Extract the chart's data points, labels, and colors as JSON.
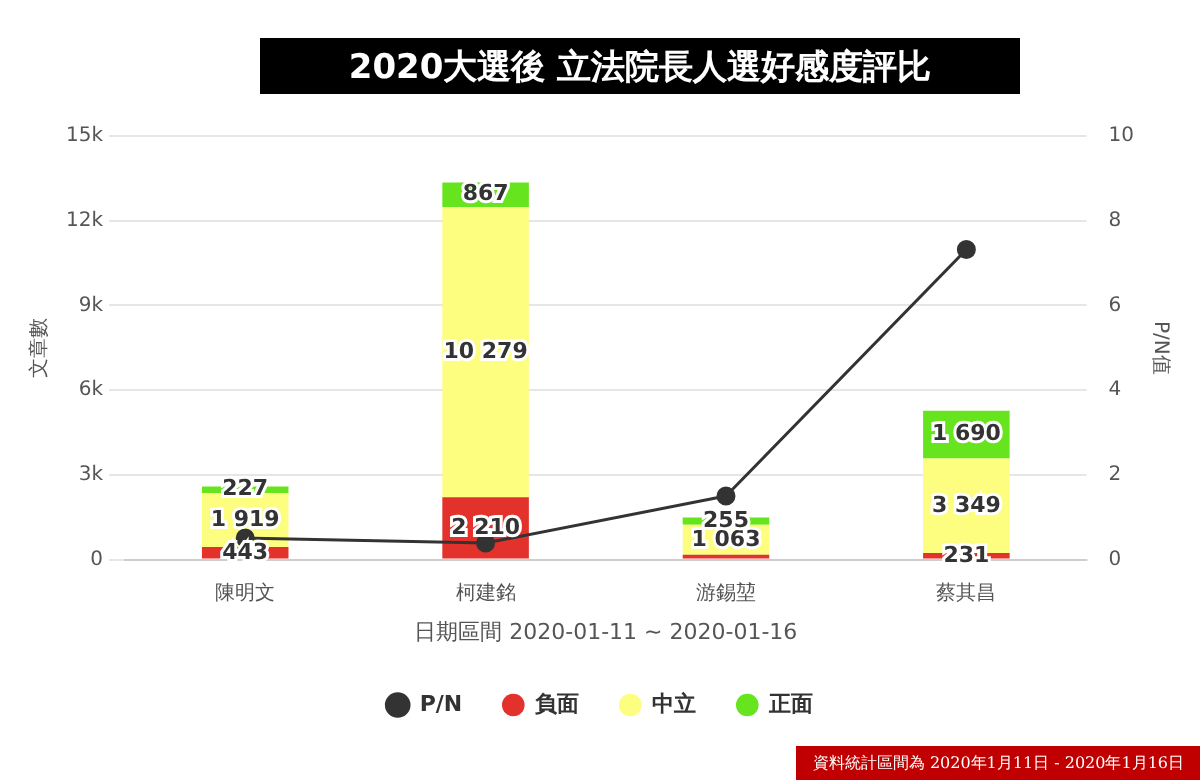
{
  "chart_data": {
    "type": "bar",
    "title": "2020大選後  立法院長人選好感度評比",
    "xlabel": "日期區間 2020-01-11 ~ 2020-01-16",
    "ylabel": "文章數",
    "y2label": "P/N值",
    "categories": [
      "陳明文",
      "柯建銘",
      "游錫堃",
      "蔡其昌"
    ],
    "stacked": true,
    "series": [
      {
        "name": "負面",
        "color": "#e3312b",
        "values": [
          443,
          2210,
          170,
          231
        ],
        "value_labels": [
          "443",
          "2 210",
          null,
          "231"
        ]
      },
      {
        "name": "中立",
        "color": "#fdfd80",
        "values": [
          1919,
          10279,
          1063,
          3349
        ],
        "value_labels": [
          "1 919",
          "10 279",
          "1 063",
          "3 349"
        ]
      },
      {
        "name": "正面",
        "color": "#66e41e",
        "values": [
          227,
          867,
          255,
          1690
        ],
        "value_labels": [
          "227",
          "867",
          "255",
          "1 690"
        ]
      },
      {
        "name": "P/N",
        "type": "line",
        "axis": "y2",
        "color": "#333333",
        "values": [
          0.51,
          0.39,
          1.5,
          7.32
        ],
        "marker": "circle"
      }
    ],
    "ylim": [
      0,
      15000
    ],
    "yticks": [
      {
        "value": 0,
        "label": "0"
      },
      {
        "value": 3000,
        "label": "3k"
      },
      {
        "value": 6000,
        "label": "6k"
      },
      {
        "value": 9000,
        "label": "9k"
      },
      {
        "value": 12000,
        "label": "12k"
      },
      {
        "value": 15000,
        "label": "15k"
      }
    ],
    "y2lim": [
      0,
      10
    ],
    "y2ticks": [
      0,
      2,
      4,
      6,
      8,
      10
    ],
    "grid": "y",
    "legend": "bottom",
    "annotations": [
      "資料統計區間為 2020年1月11日 - 2020年1月16日"
    ]
  }
}
